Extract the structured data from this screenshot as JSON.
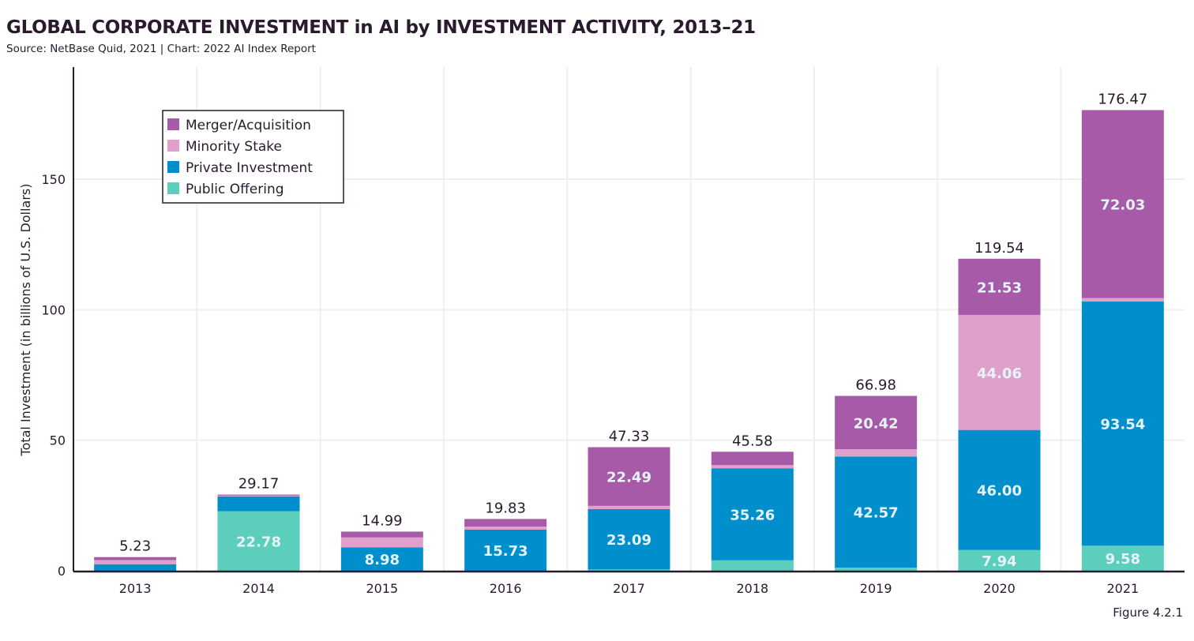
{
  "title": "GLOBAL CORPORATE INVESTMENT in AI by INVESTMENT ACTIVITY, 2013–21",
  "subtitle": "Source: NetBase Quid, 2021 | Chart: 2022 AI Index Report",
  "figure_label": "Figure 4.2.1",
  "colors": {
    "Merger/Acquisition": "#a65aa8",
    "Minority Stake": "#dfa1cc",
    "Private Investment": "#008fcc",
    "Public Offering": "#5bcebc"
  },
  "chart_data": {
    "type": "bar",
    "stacked": true,
    "title": "GLOBAL CORPORATE INVESTMENT in AI by INVESTMENT ACTIVITY, 2013–21",
    "xlabel": "",
    "ylabel": "Total Investment (in billions of U.S. Dollars)",
    "ylim": [
      0,
      180
    ],
    "yticks": [
      0,
      50,
      100,
      150
    ],
    "grid": true,
    "legend_position": "top-left",
    "categories": [
      "2013",
      "2014",
      "2015",
      "2016",
      "2017",
      "2018",
      "2019",
      "2020",
      "2021"
    ],
    "series": [
      {
        "name": "Public Offering",
        "values": [
          0,
          22.78,
          0,
          0,
          0.5,
          4.0,
          1.2,
          7.94,
          9.58
        ],
        "labels": [
          null,
          "22.78",
          null,
          null,
          null,
          null,
          null,
          "7.94",
          "9.58"
        ]
      },
      {
        "name": "Private Investment",
        "values": [
          2.5,
          5.7,
          8.98,
          15.73,
          23.09,
          35.26,
          42.57,
          46.0,
          93.54
        ],
        "labels": [
          null,
          null,
          "8.98",
          "15.73",
          "23.09",
          "35.26",
          "42.57",
          "46.00",
          "93.54"
        ]
      },
      {
        "name": "Minority Stake",
        "values": [
          1.6,
          0.3,
          3.8,
          1.2,
          1.25,
          1.2,
          2.79,
          44.06,
          1.32
        ],
        "labels": [
          null,
          null,
          null,
          null,
          null,
          null,
          null,
          "44.06",
          null
        ]
      },
      {
        "name": "Merger/Acquisition",
        "values": [
          1.13,
          0.39,
          2.21,
          2.9,
          22.49,
          5.12,
          20.42,
          21.53,
          72.03
        ],
        "labels": [
          null,
          null,
          null,
          null,
          "22.49",
          null,
          "20.42",
          "21.53",
          "72.03"
        ]
      }
    ],
    "totals": [
      "5.23",
      "29.17",
      "14.99",
      "19.83",
      "47.33",
      "45.58",
      "66.98",
      "119.54",
      "176.47"
    ],
    "legend_order": [
      "Merger/Acquisition",
      "Minority Stake",
      "Private Investment",
      "Public Offering"
    ]
  }
}
